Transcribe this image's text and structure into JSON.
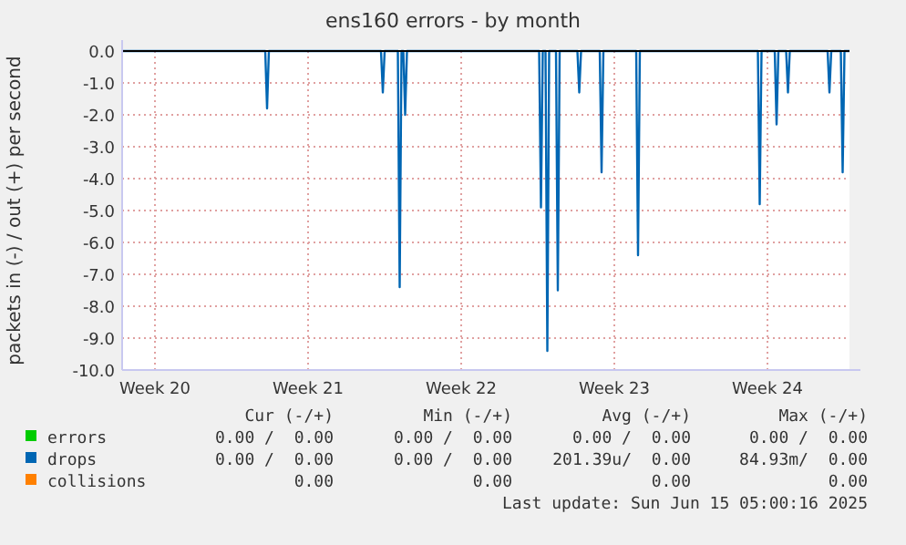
{
  "chart_data": {
    "type": "line",
    "title": "ens160 errors - by month",
    "ylabel": "packets in (-) / out (+) per second",
    "xlim": [
      "2025-05-14T00:00",
      "2025-06-16T06:00"
    ],
    "xticks": [
      {
        "value": "2025-05-15T12:00",
        "label": "Week 20"
      },
      {
        "value": "2025-05-22T12:00",
        "label": "Week 21"
      },
      {
        "value": "2025-05-29T12:00",
        "label": "Week 22"
      },
      {
        "value": "2025-06-05T12:00",
        "label": "Week 23"
      },
      {
        "value": "2025-06-12T12:00",
        "label": "Week 24"
      }
    ],
    "ylim": [
      -10,
      0
    ],
    "yticks": [
      {
        "value": 0,
        "label": "0.0"
      },
      {
        "value": -1,
        "label": "-1.0"
      },
      {
        "value": -2,
        "label": "-2.0"
      },
      {
        "value": -3,
        "label": "-3.0"
      },
      {
        "value": -4,
        "label": "-4.0"
      },
      {
        "value": -5,
        "label": "-5.0"
      },
      {
        "value": -6,
        "label": "-6.0"
      },
      {
        "value": -7,
        "label": "-7.0"
      },
      {
        "value": -8,
        "label": "-8.0"
      },
      {
        "value": -9,
        "label": "-9.0"
      },
      {
        "value": -10,
        "label": "-10.0"
      }
    ],
    "grid": true,
    "legend": "bottom",
    "series": [
      {
        "name": "errors",
        "color": "#00cc00"
      },
      {
        "name": "drops",
        "color": "#0066b3",
        "x": [
          "2025-05-14T00:00",
          "2025-05-20T13:00",
          "2025-05-20T15:00",
          "2025-05-20T17:00",
          "2025-05-25T20:00",
          "2025-05-25T22:00",
          "2025-05-26T00:00",
          "2025-05-26T14:30",
          "2025-05-26T16:30",
          "2025-05-26T18:30",
          "2025-05-26T20:30",
          "2025-05-26T22:30",
          "2025-05-27T00:30",
          "2025-06-02T01:30",
          "2025-06-02T03:30",
          "2025-06-02T05:30",
          "2025-06-02T08:30",
          "2025-06-02T10:30",
          "2025-06-02T12:30",
          "2025-06-02T20:00",
          "2025-06-02T22:00",
          "2025-06-03T00:00",
          "2025-06-03T19:30",
          "2025-06-03T21:30",
          "2025-06-03T23:30",
          "2025-06-04T20:00",
          "2025-06-04T22:00",
          "2025-06-05T00:00",
          "2025-06-06T12:00",
          "2025-06-06T14:00",
          "2025-06-06T16:00",
          "2025-06-12T01:30",
          "2025-06-12T03:30",
          "2025-06-12T05:30",
          "2025-06-12T20:00",
          "2025-06-12T22:00",
          "2025-06-13T00:00",
          "2025-06-13T08:30",
          "2025-06-13T10:30",
          "2025-06-13T12:30",
          "2025-06-15T06:00",
          "2025-06-15T08:00",
          "2025-06-15T10:00",
          "2025-06-15T20:30",
          "2025-06-15T22:30",
          "2025-06-16T00:30",
          "2025-06-16T06:00"
        ],
        "values": [
          0,
          0,
          -1.8,
          0,
          0,
          -1.3,
          0,
          0,
          -7.4,
          0,
          0,
          -2.0,
          0,
          0,
          -4.9,
          0,
          0,
          -9.4,
          0,
          0,
          -7.5,
          0,
          0,
          -1.3,
          0,
          0,
          -3.8,
          0,
          0,
          -6.4,
          0,
          0,
          -4.8,
          0,
          0,
          -2.3,
          0,
          0,
          -1.3,
          0,
          0,
          -1.3,
          0,
          0,
          -3.8,
          0,
          0
        ]
      },
      {
        "name": "collisions",
        "color": "#ff8000"
      }
    ],
    "annotations": [
      "Cur (-/+)",
      "Min (-/+)",
      "Avg (-/+)",
      "Max (-/+)",
      "0.00 /  0.00",
      "0.00 /  0.00",
      "0.00 /  0.00",
      "0.00 /  0.00",
      "0.00 /  0.00",
      "0.00 /  0.00",
      "201.39u/  0.00",
      "84.93m/  0.00",
      "0.00",
      "0.00",
      "0.00",
      "0.00",
      "Last update: Sun Jun 15 05:00:16 2025"
    ]
  }
}
